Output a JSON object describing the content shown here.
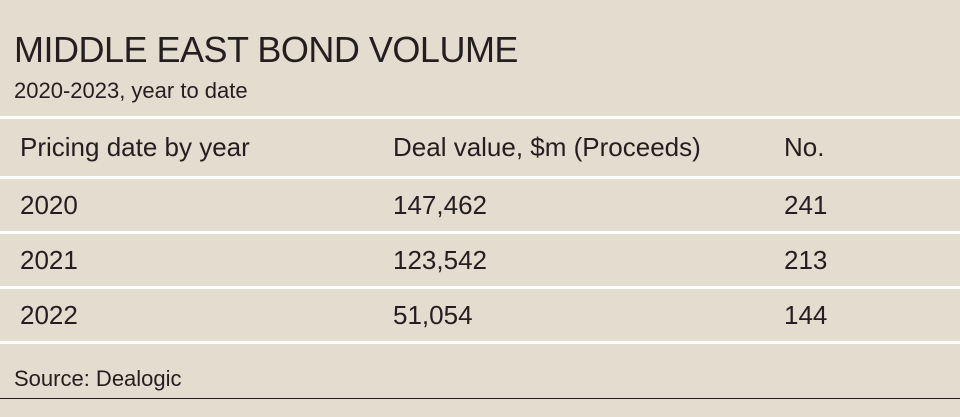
{
  "chart_data": {
    "type": "table",
    "title": "MIDDLE EAST BOND VOLUME",
    "subtitle": "2020-2023, year to date",
    "columns": [
      "Pricing date by year",
      "Deal value, $m (Proceeds)",
      "No."
    ],
    "rows": [
      [
        "2020",
        "147,462",
        "241"
      ],
      [
        "2021",
        "123,542",
        "213"
      ],
      [
        "2022",
        "51,054",
        "144"
      ]
    ],
    "source": "Source: Dealogic"
  }
}
